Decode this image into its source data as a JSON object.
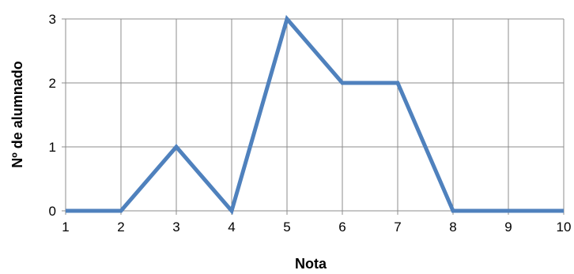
{
  "chart_data": {
    "type": "line",
    "title": "",
    "xlabel": "Nota",
    "ylabel": "Nº de alumnado",
    "x": [
      1,
      2,
      3,
      4,
      5,
      6,
      7,
      8,
      9,
      10
    ],
    "series": [
      {
        "values": [
          0,
          0,
          1,
          0,
          3,
          2,
          2,
          0,
          0,
          0
        ],
        "color": "#4f81bd"
      }
    ],
    "xlim": [
      1,
      10
    ],
    "ylim": [
      0,
      3
    ],
    "xticks": [
      "1",
      "2",
      "3",
      "4",
      "5",
      "6",
      "7",
      "8",
      "9",
      "10"
    ],
    "yticks": [
      "0",
      "1",
      "2",
      "3"
    ],
    "grid": true,
    "legend": "none"
  }
}
